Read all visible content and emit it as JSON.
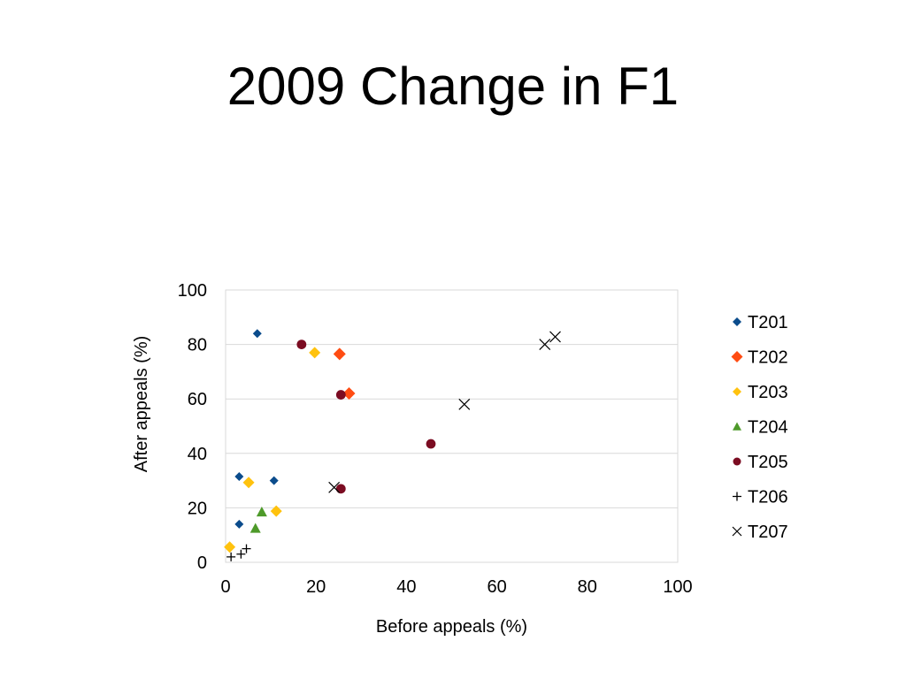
{
  "title": "2009 Change in F1",
  "chart_data": {
    "type": "scatter",
    "title": "",
    "xlabel": "Before appeals (%)",
    "ylabel": "After appeals (%)",
    "xlim": [
      0,
      100
    ],
    "ylim": [
      0,
      100
    ],
    "xticks": [
      0,
      20,
      40,
      60,
      80,
      100
    ],
    "yticks": [
      0,
      20,
      40,
      60,
      80,
      100
    ],
    "grid": "horizontal major gridlines",
    "legend_position": "right",
    "series": [
      {
        "name": "T201",
        "marker": "diamond",
        "color": "#0B4C8C",
        "points": [
          [
            7,
            84
          ],
          [
            3,
            31.5
          ],
          [
            3,
            14
          ],
          [
            10.7,
            30
          ]
        ]
      },
      {
        "name": "T202",
        "marker": "diamond",
        "color": "#FF4C12",
        "points": [
          [
            25.2,
            76.5
          ],
          [
            27.3,
            62
          ]
        ]
      },
      {
        "name": "T203",
        "marker": "diamond",
        "color": "#FFC20E",
        "points": [
          [
            19.7,
            77
          ],
          [
            5.1,
            29.3
          ],
          [
            11.2,
            18.8
          ],
          [
            0.9,
            5.6
          ]
        ]
      },
      {
        "name": "T204",
        "marker": "triangle",
        "color": "#4E9A2A",
        "points": [
          [
            8,
            18.5
          ],
          [
            6.6,
            12.5
          ]
        ]
      },
      {
        "name": "T205",
        "marker": "circle",
        "color": "#7B0C22",
        "points": [
          [
            16.8,
            80
          ],
          [
            25.5,
            61.5
          ],
          [
            45.4,
            43.5
          ],
          [
            25.5,
            27
          ]
        ]
      },
      {
        "name": "T206",
        "marker": "plus",
        "color": "#000000",
        "points": [
          [
            1.2,
            2
          ],
          [
            3.4,
            3
          ],
          [
            4.6,
            5
          ]
        ]
      },
      {
        "name": "T207",
        "marker": "x",
        "color": "#000000",
        "points": [
          [
            70.6,
            80
          ],
          [
            72.9,
            82.8
          ],
          [
            52.8,
            58
          ],
          [
            24,
            27.5
          ]
        ]
      }
    ]
  }
}
